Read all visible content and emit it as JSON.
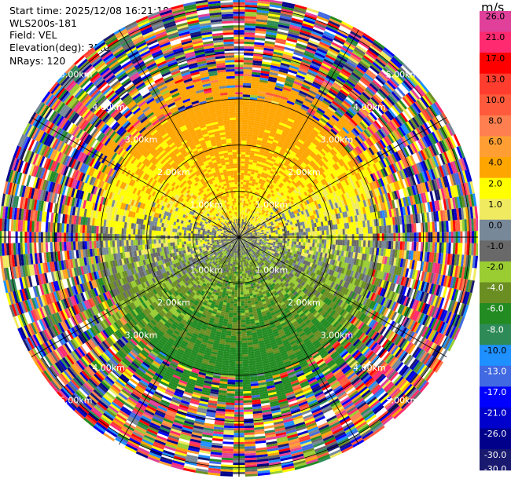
{
  "header": {
    "start_time": "Start time: 2025/12/08 16:21:18",
    "instrument": "WLS200s-181",
    "field": "Field: VEL",
    "elevation": "Elevation(deg): 35.00",
    "nrays": "NRays: 120"
  },
  "colorbar": {
    "units": "m/s",
    "levels": [
      {
        "label": "26.0",
        "color": "#e0409a"
      },
      {
        "label": "21.0",
        "color": "#ff2a70"
      },
      {
        "label": "17.0",
        "color": "#ff0000"
      },
      {
        "label": "13.0",
        "color": "#ff3d2e"
      },
      {
        "label": "10.0",
        "color": "#ff5a3c"
      },
      {
        "label": "8.0",
        "color": "#ff7f50"
      },
      {
        "label": "6.0",
        "color": "#ff9f33"
      },
      {
        "label": "4.0",
        "color": "#ffa500"
      },
      {
        "label": "2.0",
        "color": "#ffff00"
      },
      {
        "label": "1.0",
        "color": "#f0ea60"
      },
      {
        "label": "0.0",
        "color": "#778899"
      },
      {
        "label": "-1.0",
        "color": "#696969"
      },
      {
        "label": "-2.0",
        "color": "#9acd32"
      },
      {
        "label": "-4.0",
        "color": "#6b8e23"
      },
      {
        "label": "-6.0",
        "color": "#228b22"
      },
      {
        "label": "-8.0",
        "color": "#2e8b57"
      },
      {
        "label": "-10.0",
        "color": "#1e90ff"
      },
      {
        "label": "-13.0",
        "color": "#4169e1"
      },
      {
        "label": "-17.0",
        "color": "#0000ff"
      },
      {
        "label": "-21.0",
        "color": "#0000cd"
      },
      {
        "label": "-26.0",
        "color": "#00008b"
      },
      {
        "label": "-30.0",
        "color": "#191970"
      }
    ],
    "end_labels": [
      "26.0",
      "-30.0"
    ]
  },
  "chart_data": {
    "type": "heatmap",
    "subtype": "radar-ppi",
    "field": "VEL",
    "nrays": 120,
    "range_rings_km": [
      1.0,
      2.0,
      3.0,
      4.0,
      5.0
    ],
    "max_range_km": 5.2,
    "ring_labels": [
      "1.00km",
      "2.00km",
      "3.00km",
      "4.00km",
      "5.00km"
    ],
    "spokes_deg": [
      0,
      30,
      60,
      90,
      120,
      150,
      180,
      210,
      240,
      270,
      300,
      330
    ],
    "velocity_pattern": {
      "inner_positive_sector": "north",
      "inner_negative_sector": "south",
      "noise_beyond_km": 3.6
    }
  }
}
